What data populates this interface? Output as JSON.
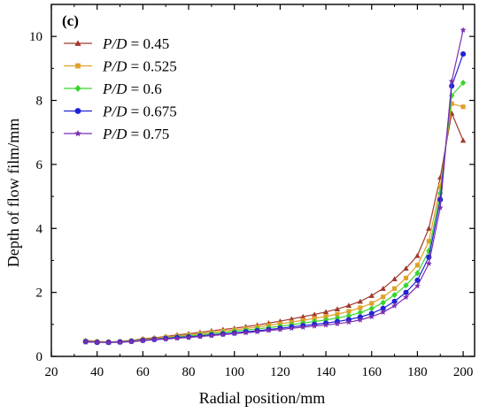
{
  "chart_data": {
    "type": "line",
    "panel_label": "(c)",
    "xlabel": "Radial position/mm",
    "ylabel": "Depth of flow film/mm",
    "xlim": [
      20,
      205
    ],
    "ylim": [
      0,
      11
    ],
    "xticks": [
      "20",
      "40",
      "60",
      "80",
      "100",
      "120",
      "140",
      "160",
      "180",
      "200"
    ],
    "yticks": [
      "0",
      "2",
      "4",
      "6",
      "8",
      "10"
    ],
    "legend_position": "top-left",
    "grid": false,
    "x": [
      35,
      40,
      45,
      50,
      55,
      60,
      65,
      70,
      75,
      80,
      85,
      90,
      95,
      100,
      105,
      110,
      115,
      120,
      125,
      130,
      135,
      140,
      145,
      150,
      155,
      160,
      165,
      170,
      175,
      180,
      185,
      190,
      195,
      200
    ],
    "series": [
      {
        "name_prefix": "P/D",
        "name_value": " = 0.45",
        "color": "#a0392c",
        "marker": "triangle",
        "values": [
          0.5,
          0.47,
          0.45,
          0.47,
          0.5,
          0.55,
          0.58,
          0.62,
          0.67,
          0.71,
          0.75,
          0.8,
          0.84,
          0.88,
          0.93,
          0.98,
          1.04,
          1.1,
          1.17,
          1.24,
          1.31,
          1.39,
          1.48,
          1.59,
          1.72,
          1.9,
          2.12,
          2.42,
          2.75,
          3.15,
          4.0,
          5.6,
          7.6,
          6.75
        ]
      },
      {
        "name_prefix": "P/D",
        "name_value": " = 0.525",
        "color": "#e0a02a",
        "marker": "square",
        "values": [
          0.48,
          0.46,
          0.45,
          0.46,
          0.49,
          0.53,
          0.56,
          0.6,
          0.64,
          0.67,
          0.71,
          0.75,
          0.79,
          0.83,
          0.87,
          0.92,
          0.97,
          1.02,
          1.07,
          1.13,
          1.19,
          1.25,
          1.32,
          1.41,
          1.52,
          1.66,
          1.86,
          2.12,
          2.45,
          2.85,
          3.6,
          5.3,
          7.9,
          7.8
        ]
      },
      {
        "name_prefix": "P/D",
        "name_value": " = 0.6",
        "color": "#39d42e",
        "marker": "diamond",
        "values": [
          0.47,
          0.45,
          0.44,
          0.45,
          0.48,
          0.51,
          0.54,
          0.57,
          0.61,
          0.64,
          0.67,
          0.71,
          0.74,
          0.78,
          0.82,
          0.86,
          0.9,
          0.94,
          0.99,
          1.04,
          1.09,
          1.14,
          1.2,
          1.27,
          1.37,
          1.5,
          1.68,
          1.92,
          2.22,
          2.6,
          3.3,
          5.1,
          8.15,
          8.55
        ]
      },
      {
        "name_prefix": "P/D",
        "name_value": " = 0.675",
        "color": "#1f22d6",
        "marker": "circle",
        "values": [
          0.46,
          0.44,
          0.44,
          0.45,
          0.47,
          0.5,
          0.53,
          0.56,
          0.59,
          0.61,
          0.64,
          0.67,
          0.7,
          0.73,
          0.77,
          0.8,
          0.84,
          0.88,
          0.92,
          0.96,
          1.0,
          1.04,
          1.09,
          1.15,
          1.23,
          1.34,
          1.5,
          1.72,
          2.0,
          2.38,
          3.1,
          4.9,
          8.45,
          9.45
        ]
      },
      {
        "name_prefix": "P/D",
        "name_value": " = 0.75",
        "color": "#7b2fb0",
        "marker": "star",
        "values": [
          0.45,
          0.44,
          0.43,
          0.44,
          0.46,
          0.49,
          0.52,
          0.54,
          0.57,
          0.59,
          0.62,
          0.65,
          0.68,
          0.71,
          0.74,
          0.77,
          0.81,
          0.84,
          0.88,
          0.91,
          0.95,
          0.98,
          1.02,
          1.07,
          1.14,
          1.24,
          1.38,
          1.58,
          1.85,
          2.2,
          2.9,
          4.65,
          8.6,
          10.2
        ]
      }
    ]
  }
}
